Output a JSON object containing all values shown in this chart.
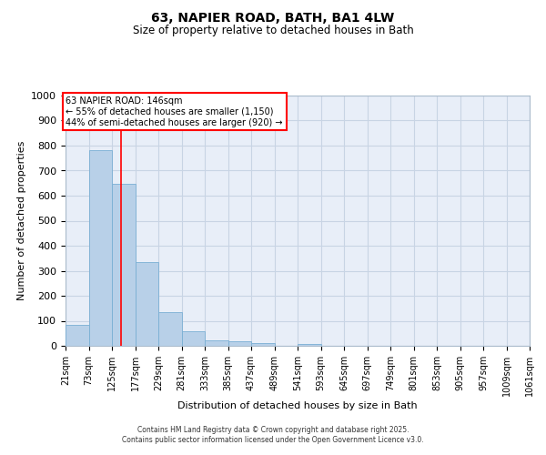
{
  "title1": "63, NAPIER ROAD, BATH, BA1 4LW",
  "title2": "Size of property relative to detached houses in Bath",
  "xlabel": "Distribution of detached houses by size in Bath",
  "ylabel": "Number of detached properties",
  "bar_values": [
    85,
    780,
    648,
    335,
    133,
    60,
    22,
    18,
    10,
    0,
    8,
    0,
    0,
    0,
    0,
    0,
    0,
    0,
    0,
    0
  ],
  "bin_edges": [
    21,
    73,
    125,
    177,
    229,
    281,
    333,
    385,
    437,
    489,
    541,
    593,
    645,
    697,
    749,
    801,
    853,
    905,
    957,
    1009,
    1061
  ],
  "tick_labels": [
    "21sqm",
    "73sqm",
    "125sqm",
    "177sqm",
    "229sqm",
    "281sqm",
    "333sqm",
    "385sqm",
    "437sqm",
    "489sqm",
    "541sqm",
    "593sqm",
    "645sqm",
    "697sqm",
    "749sqm",
    "801sqm",
    "853sqm",
    "905sqm",
    "957sqm",
    "1009sqm",
    "1061sqm"
  ],
  "bar_color": "#b8d0e8",
  "bar_edge_color": "#7aafd4",
  "grid_color": "#c8d4e4",
  "bg_color": "#e8eef8",
  "red_line_x": 146,
  "ylim_max": 1000,
  "yticks": [
    0,
    100,
    200,
    300,
    400,
    500,
    600,
    700,
    800,
    900,
    1000
  ],
  "annotation_line1": "63 NAPIER ROAD: 146sqm",
  "annotation_line2": "← 55% of detached houses are smaller (1,150)",
  "annotation_line3": "44% of semi-detached houses are larger (920) →",
  "footer1": "Contains HM Land Registry data © Crown copyright and database right 2025.",
  "footer2": "Contains public sector information licensed under the Open Government Licence v3.0.",
  "title1_fontsize": 10,
  "title2_fontsize": 8.5,
  "ylabel_fontsize": 8,
  "xlabel_fontsize": 8,
  "tick_fontsize": 7,
  "annotation_fontsize": 7,
  "footer_fontsize": 5.5
}
